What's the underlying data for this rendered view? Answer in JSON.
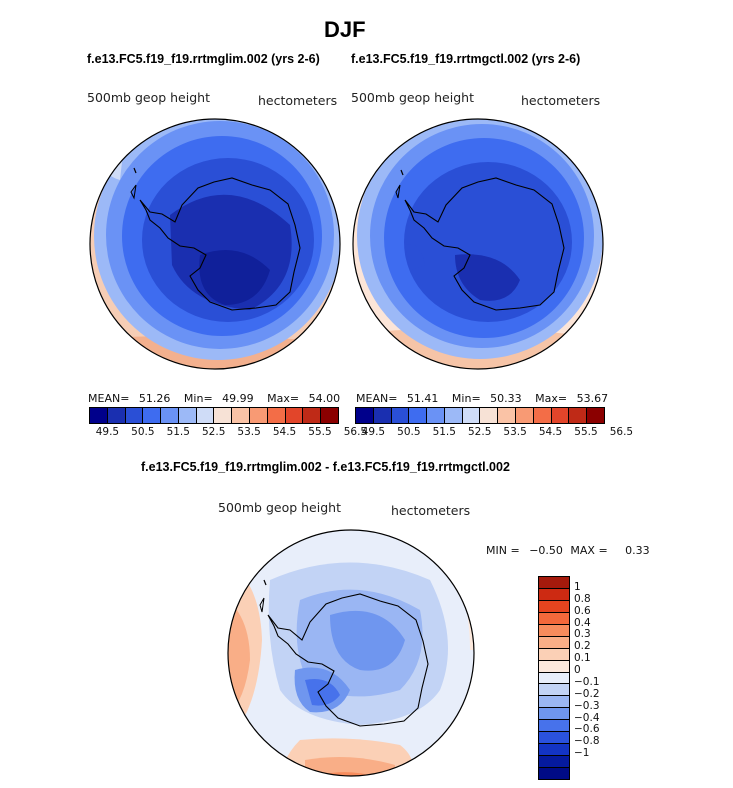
{
  "figure": {
    "season": "DJF",
    "panels": [
      {
        "case_label": "f.e13.FC5.f19_f19.rrtmglim.002 (yrs 2-6)",
        "field_label": "500mb geop height",
        "units_label": "hectometers",
        "stats": {
          "mean_label": "MEAN=",
          "mean": "51.26",
          "min_label": "Min=",
          "min": "49.99",
          "max_label": "Max=",
          "max": "54.00"
        }
      },
      {
        "case_label": "f.e13.FC5.f19_f19.rrtmgctl.002 (yrs 2-6)",
        "field_label": "500mb geop height",
        "units_label": "hectometers",
        "stats": {
          "mean_label": "MEAN=",
          "mean": "51.41",
          "min_label": "Min=",
          "min": "50.33",
          "max_label": "Max=",
          "max": "53.67"
        }
      }
    ],
    "colorbar_top": {
      "colors": [
        "#00008b",
        "#1a2fb0",
        "#2a4fd6",
        "#3e6cf0",
        "#6a92f5",
        "#9cb9f7",
        "#cfdcf7",
        "#f7e2d6",
        "#fac3a6",
        "#f89a74",
        "#f36d47",
        "#e2452a",
        "#bf2a17",
        "#8b0000"
      ],
      "tick_labels": [
        "49.5",
        "50.5",
        "51.5",
        "52.5",
        "53.5",
        "54.5",
        "55.5",
        "56.5"
      ]
    },
    "difference": {
      "case_label": "f.e13.FC5.f19_f19.rrtmglim.002 - f.e13.FC5.f19_f19.rrtmgctl.002",
      "field_label": "500mb geop height",
      "units_label": "hectometers",
      "min_label": "MIN =",
      "min": "−0.50",
      "max_label": "MAX =",
      "max": "0.33",
      "colorbar": {
        "colors_top_to_bottom": [
          "#a51a0c",
          "#cd2a12",
          "#e5441f",
          "#f3683b",
          "#f78c5d",
          "#f9ae87",
          "#fbd0b6",
          "#fce9dd",
          "#e8eefa",
          "#c2d3f5",
          "#9ab6f3",
          "#6f96ef",
          "#4772eb",
          "#2a52de",
          "#1334c4",
          "#051a9e",
          "#000b86"
        ],
        "tick_labels": [
          "1",
          "0.8",
          "0.6",
          "0.4",
          "0.3",
          "0.2",
          "0.1",
          "0",
          "−0.1",
          "−0.2",
          "−0.3",
          "−0.4",
          "−0.6",
          "−0.8",
          "−1"
        ]
      }
    }
  }
}
